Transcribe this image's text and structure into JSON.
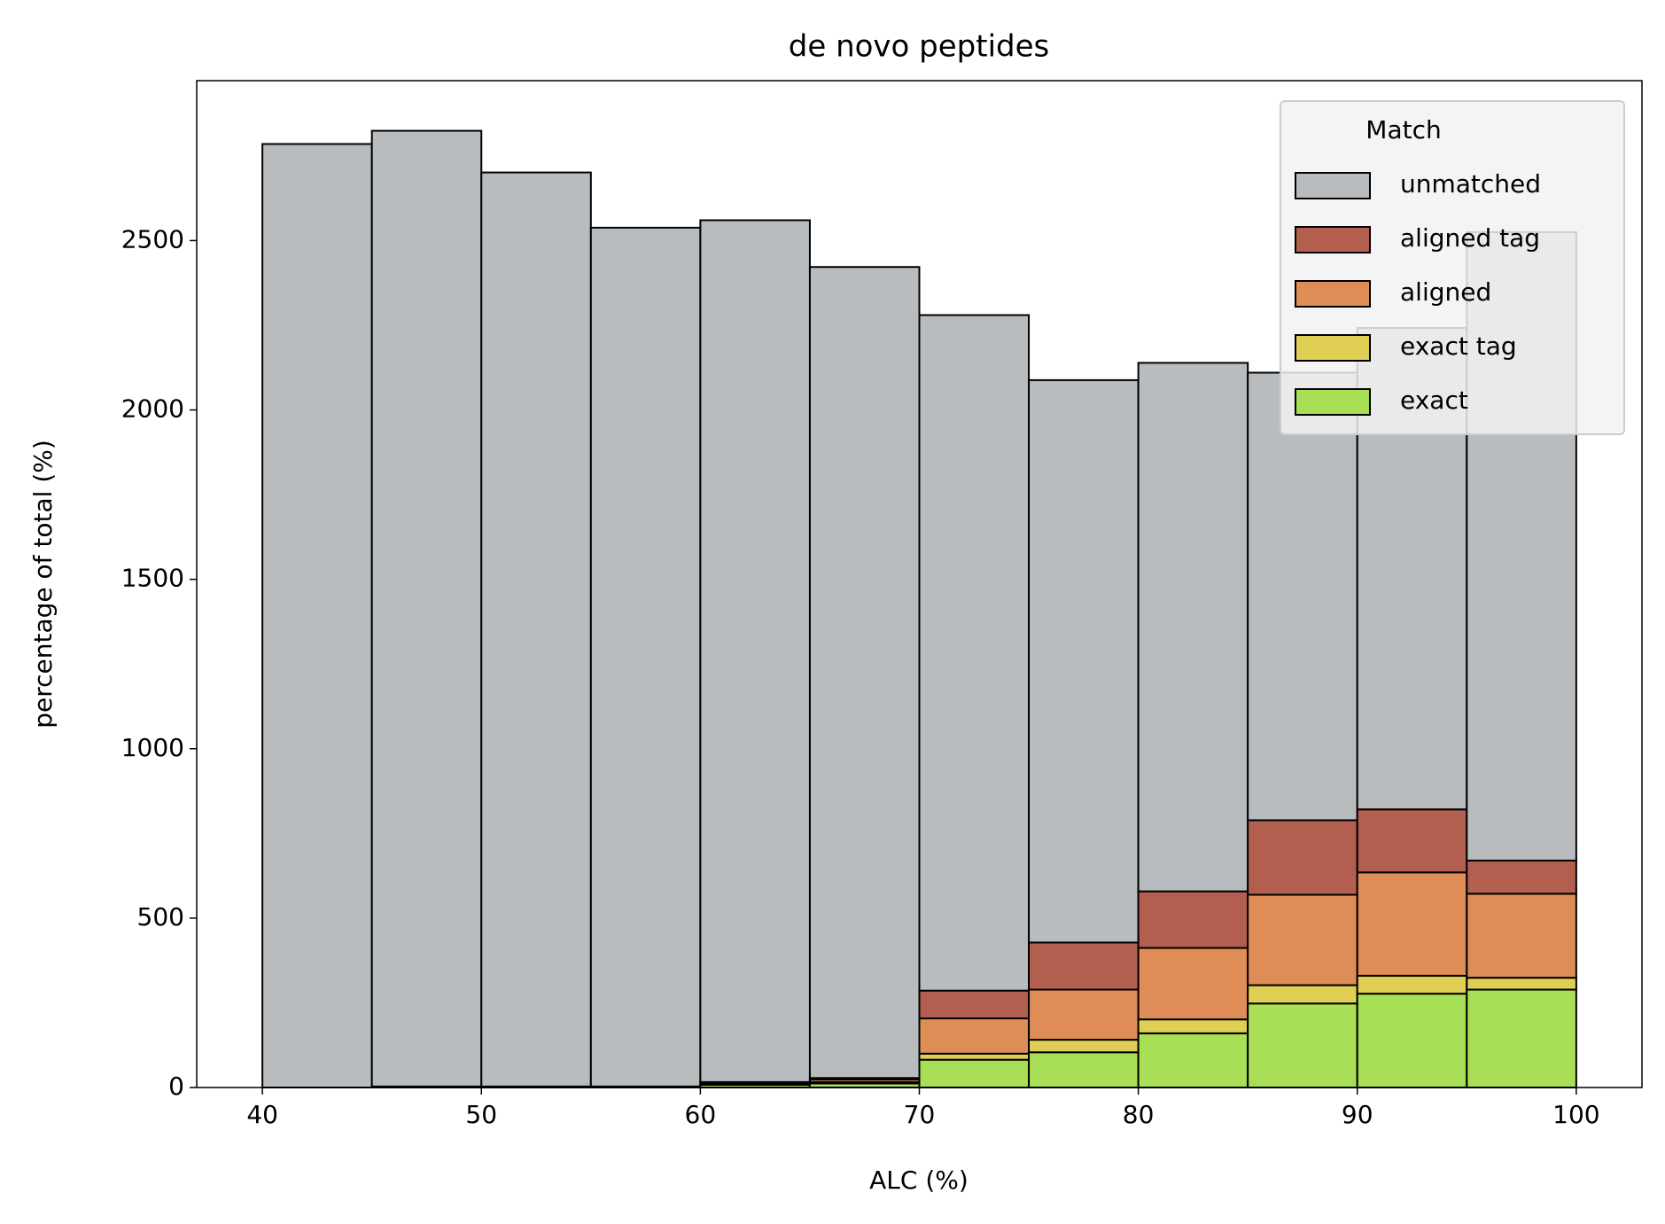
{
  "chart_data": {
    "type": "histogram",
    "stacked": true,
    "title": "de novo peptides",
    "x_label": "ALC (%)",
    "y_label": "percentage of total (%)",
    "bins": [
      40,
      45,
      50,
      55,
      60,
      65,
      70,
      75,
      80,
      85,
      90,
      95,
      100
    ],
    "legend_title": "Match",
    "legend": "upper right",
    "series": [
      {
        "name": "exact",
        "color": "#a9df56",
        "values": [
          0,
          2,
          2,
          2,
          8,
          12,
          82,
          104,
          160,
          248,
          277,
          289
        ]
      },
      {
        "name": "exact tag",
        "color": "#dfd055",
        "values": [
          0,
          0,
          0,
          0,
          2,
          4,
          18,
          37,
          41,
          54,
          53,
          35
        ]
      },
      {
        "name": "aligned",
        "color": "#df8d56",
        "values": [
          0,
          1,
          1,
          1,
          4,
          8,
          104,
          148,
          211,
          267,
          305,
          248
        ]
      },
      {
        "name": "aligned tag",
        "color": "#b35f50",
        "values": [
          0,
          0,
          0,
          0,
          2,
          4,
          82,
          139,
          167,
          220,
          186,
          98
        ]
      },
      {
        "name": "unmatched",
        "color": "#b8bcbf",
        "values": [
          2785,
          2821,
          2698,
          2535,
          2544,
          2394,
          1994,
          1660,
          1560,
          1321,
          1421,
          1855
        ]
      }
    ],
    "xlim": [
      37,
      103
    ],
    "ylim": [
      0,
      2972
    ],
    "xticks": [
      40,
      50,
      60,
      70,
      80,
      90,
      100
    ],
    "yticks": [
      0,
      500,
      1000,
      1500,
      2000,
      2500
    ]
  }
}
